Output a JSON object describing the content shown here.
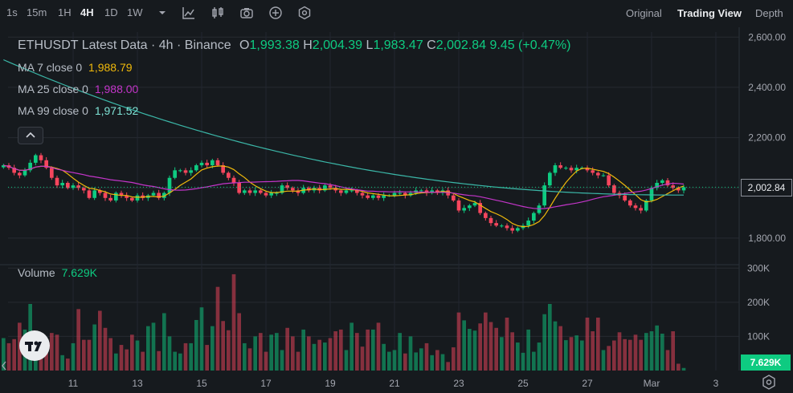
{
  "toolbar": {
    "timeframes": [
      "1s",
      "15m",
      "1H",
      "4H",
      "1D",
      "1W"
    ],
    "active_timeframe": "4H",
    "views": [
      "Original",
      "Trading View",
      "Depth"
    ],
    "active_view": "Trading View"
  },
  "legend": {
    "symbol_line": "ETHUSDT Latest Data · 4h · Binance",
    "o_label": "O",
    "o": "1,993.38",
    "h_label": "H",
    "h": "2,004.39",
    "l_label": "L",
    "l": "1,983.47",
    "c_label": "C",
    "c": "2,002.84",
    "change": "9.45 (+0.47%)",
    "ma7_label": "MA 7 close 0",
    "ma7": "1,988.79",
    "ma25_label": "MA 25 close 0",
    "ma25": "1,988.00",
    "ma99_label": "MA 99 close 0",
    "ma99": "1,971.52",
    "volume_label": "Volume",
    "volume": "7.629K"
  },
  "price_tag": "2,002.84",
  "volume_tag": "7.629K",
  "colors": {
    "up": "#0ecb81",
    "down": "#f6465d",
    "ma7": "#f0b90b",
    "ma25": "#c335c9",
    "ma99": "#3bb7a8",
    "bg": "#161a1e"
  },
  "chart_data": {
    "type": "candlestick",
    "price_axis": {
      "ticks": [
        "1,800.00",
        "2,000.00",
        "2,200.00",
        "2,400.00",
        "2,600.00"
      ],
      "values": [
        1800,
        2000,
        2200,
        2400,
        2600
      ],
      "range": [
        1720,
        2620
      ]
    },
    "volume_axis": {
      "ticks": [
        "100K",
        "200K",
        "300K"
      ],
      "values": [
        100000,
        200000,
        300000
      ],
      "range": [
        0,
        310000
      ]
    },
    "x_ticks": [
      {
        "label": "11",
        "index": 13
      },
      {
        "label": "13",
        "index": 25
      },
      {
        "label": "15",
        "index": 37
      },
      {
        "label": "17",
        "index": 49
      },
      {
        "label": "19",
        "index": 61
      },
      {
        "label": "21",
        "index": 73
      },
      {
        "label": "23",
        "index": 85
      },
      {
        "label": "25",
        "index": 97
      },
      {
        "label": "27",
        "index": 109
      },
      {
        "label": "Mar",
        "index": 121
      },
      {
        "label": "3",
        "index": 133
      }
    ],
    "last_close": 2002.84,
    "volume_last": "7.629K",
    "closes": [
      2090,
      2080,
      2060,
      2050,
      2070,
      2100,
      2130,
      2110,
      2080,
      2040,
      2010,
      2020,
      2000,
      2010,
      2000,
      1990,
      1960,
      1990,
      1980,
      1960,
      1950,
      1980,
      1970,
      1960,
      1950,
      1970,
      1960,
      1970,
      1980,
      1960,
      1980,
      2040,
      2070,
      2070,
      2060,
      2070,
      2090,
      2100,
      2090,
      2110,
      2090,
      2060,
      2040,
      2020,
      1980,
      1990,
      1980,
      1990,
      1980,
      1970,
      1980,
      1980,
      2010,
      2000,
      1990,
      1980,
      2000,
      1990,
      2000,
      1990,
      2010,
      2000,
      1990,
      1980,
      1990,
      1990,
      1980,
      1970,
      1960,
      1970,
      1960,
      1970,
      1970,
      1980,
      1980,
      1970,
      1980,
      1990,
      1990,
      1980,
      1990,
      1980,
      1990,
      1970,
      1950,
      1910,
      1920,
      1930,
      1940,
      1900,
      1880,
      1860,
      1850,
      1850,
      1840,
      1830,
      1840,
      1850,
      1870,
      1900,
      1930,
      2010,
      2060,
      2090,
      2080,
      2080,
      2070,
      2080,
      2080,
      2070,
      2060,
      2050,
      2050,
      2010,
      1980,
      1970,
      1950,
      1930,
      1920,
      1910,
      1950,
      2000,
      2020,
      2030,
      2010,
      2000,
      1990,
      2002.84
    ],
    "volumes": [
      95000,
      80000,
      92000,
      140000,
      120000,
      195000,
      85000,
      60000,
      75000,
      110000,
      105000,
      45000,
      35000,
      80000,
      180000,
      90000,
      90000,
      135000,
      175000,
      125000,
      95000,
      50000,
      75000,
      62000,
      105000,
      88000,
      55000,
      130000,
      140000,
      57000,
      168000,
      100000,
      55000,
      50000,
      80000,
      80000,
      148000,
      185000,
      75000,
      130000,
      245000,
      145000,
      118000,
      282000,
      168000,
      80000,
      65000,
      100000,
      110000,
      55000,
      105000,
      110000,
      60000,
      125000,
      100000,
      55000,
      120000,
      100000,
      78000,
      90000,
      82000,
      95000,
      115000,
      120000,
      60000,
      140000,
      110000,
      70000,
      120000,
      120000,
      140000,
      78000,
      55000,
      60000,
      110000,
      50000,
      100000,
      53000,
      65000,
      80000,
      45000,
      60000,
      48000,
      25000,
      68000,
      170000,
      147000,
      122000,
      117000,
      138000,
      170000,
      142000,
      125000,
      98000,
      155000,
      112000,
      82000,
      52000,
      120000,
      55000,
      82000,
      165000,
      195000,
      144000,
      130000,
      89000,
      98000,
      103000,
      88000,
      155000,
      115000,
      155000,
      60000,
      72000,
      88000,
      112000,
      92000,
      90000,
      105000,
      90000,
      110000,
      115000,
      132000,
      108000,
      60000,
      115000,
      20000,
      7629
    ]
  }
}
